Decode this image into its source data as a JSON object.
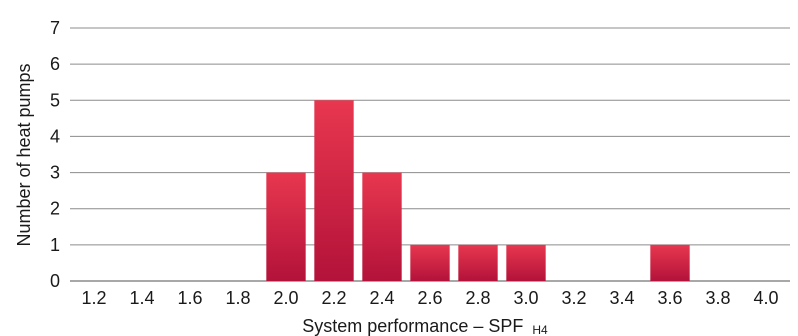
{
  "chart_data": {
    "type": "bar",
    "categories": [
      "1.2",
      "1.4",
      "1.6",
      "1.8",
      "2.0",
      "2.2",
      "2.4",
      "2.6",
      "2.8",
      "3.0",
      "3.2",
      "3.4",
      "3.6",
      "3.8",
      "4.0"
    ],
    "values": [
      0,
      0,
      0,
      0,
      3,
      5,
      3,
      1,
      1,
      1,
      0,
      0,
      1,
      0,
      0
    ],
    "title": "",
    "xlabel": "System performance – SPF",
    "xlabel_subscript": "H4",
    "ylabel": "Number of heat pumps",
    "ylim": [
      0,
      7
    ],
    "yticks": [
      "0",
      "1",
      "2",
      "3",
      "4",
      "5",
      "6",
      "7"
    ],
    "grid": true,
    "legend": "none",
    "bar_color_top": "#e8374f",
    "bar_color_bottom": "#b3123a",
    "grid_color": "#8c8c8c"
  }
}
